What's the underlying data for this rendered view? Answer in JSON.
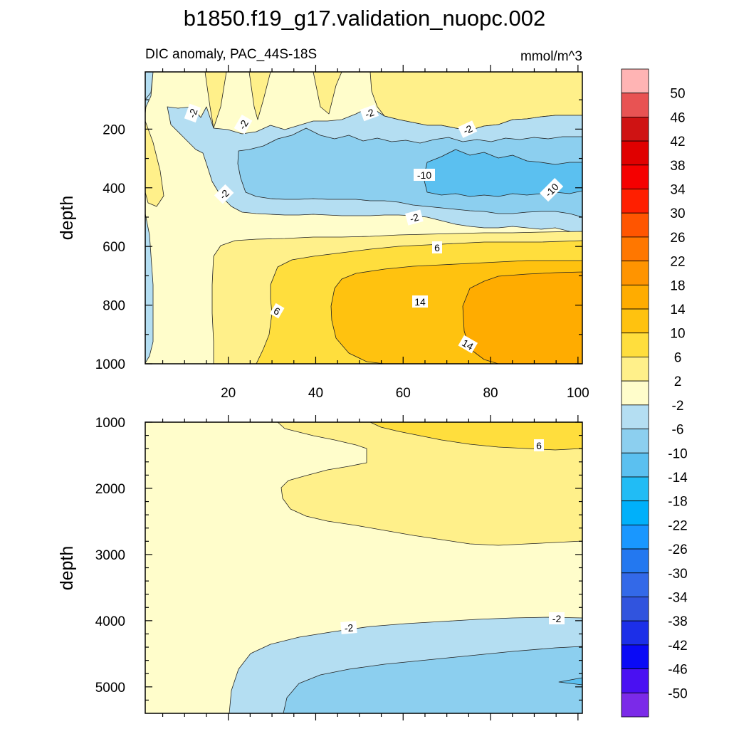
{
  "figure_title": "b1850.f19_g17.validation_nuopc.002",
  "chart_data": [
    {
      "type": "contour",
      "panel": "upper",
      "subtitle_left": "DIC anomaly, PAC_44S-18S",
      "subtitle_right": "mmol/m^3",
      "xlabel": "",
      "ylabel": "depth",
      "xlim": [
        1,
        101
      ],
      "ylim": [
        1000,
        5
      ],
      "x_ticks": [
        20,
        40,
        60,
        80,
        100
      ],
      "x_tick_labels": [
        "20",
        "40",
        "60",
        "80",
        "100"
      ],
      "y_ticks": [
        200,
        400,
        600,
        800,
        1000
      ],
      "y_tick_labels": [
        "200",
        "400",
        "600",
        "800",
        "1000"
      ],
      "contour_labels": [
        "-2",
        "-2",
        "-2",
        "-2",
        "-2",
        "-10",
        "-10",
        "-2",
        "6",
        "6",
        "14",
        "14"
      ],
      "regions": [
        {
          "min": -2,
          "max": 2,
          "desc": "background, near-zero"
        },
        {
          "min": 2,
          "max": 6,
          "desc": "upper ~0-150 m streaks; lower-left 600-1000 m"
        },
        {
          "min": -6,
          "max": -2,
          "desc": "band 150-500 m"
        },
        {
          "min": -10,
          "max": -6,
          "desc": "core 220-450 m, x 25-100"
        },
        {
          "min": -14,
          "max": -10,
          "desc": "core 250-420 m, x 63-100"
        },
        {
          "min": 6,
          "max": 10,
          "desc": "x 30-100, 650-1000 m"
        },
        {
          "min": 10,
          "max": 14,
          "desc": "x 45-100, 680-1000 m"
        },
        {
          "min": 14,
          "max": 18,
          "desc": "x 72-100, 700-1000 m"
        }
      ]
    },
    {
      "type": "contour",
      "panel": "lower",
      "xlabel": "",
      "ylabel": "depth",
      "xlim": [
        1,
        101
      ],
      "ylim": [
        5400,
        1000
      ],
      "y_ticks": [
        1000,
        2000,
        3000,
        4000,
        5000
      ],
      "y_tick_labels": [
        "1000",
        "2000",
        "3000",
        "4000",
        "5000"
      ],
      "contour_labels": [
        "6",
        "-2",
        "-2"
      ],
      "regions": [
        {
          "min": -2,
          "max": 2,
          "desc": "background"
        },
        {
          "min": 2,
          "max": 6,
          "desc": "tongue 1000-2800 m from x ~32 to 100"
        },
        {
          "min": 6,
          "max": 10,
          "desc": "thin band near 1000-1350 m, x 60-100"
        },
        {
          "min": -6,
          "max": -2,
          "desc": "abyssal 3900-5400 m"
        },
        {
          "min": -10,
          "max": -6,
          "desc": "bottom 4300-5400 m, x 33-100"
        }
      ]
    }
  ],
  "colorbar": {
    "labels": [
      "50",
      "46",
      "42",
      "38",
      "34",
      "30",
      "26",
      "22",
      "18",
      "14",
      "10",
      "6",
      "2",
      "-2",
      "-6",
      "-10",
      "-14",
      "-18",
      "-22",
      "-26",
      "-30",
      "-34",
      "-38",
      "-42",
      "-46",
      "-50"
    ],
    "colors": [
      "#FFB4B4",
      "#E85353",
      "#CF1313",
      "#E00000",
      "#F50000",
      "#FF1F00",
      "#FF5500",
      "#FF7700",
      "#FF9400",
      "#FFAC00",
      "#FFC20F",
      "#FFDE3D",
      "#FFF08A",
      "#FFFDCB",
      "#B4DEF2",
      "#8CCFEF",
      "#5BC0F0",
      "#21BCF5",
      "#00B0FA",
      "#1997FF",
      "#2378F0",
      "#3369E8",
      "#3154DE",
      "#1C2FE8",
      "#0A0AF6",
      "#4A10F2",
      "#7B2AE8"
    ]
  },
  "palette": {
    "c_m2": "#FFFDCB",
    "c_2": "#FFF08A",
    "c_6": "#FFDE3D",
    "c_10": "#FFC20F",
    "c_14": "#FFAC00",
    "c_n6": "#B4DEF2",
    "c_n10": "#8CCFEF",
    "c_n14": "#5BC0F0"
  }
}
